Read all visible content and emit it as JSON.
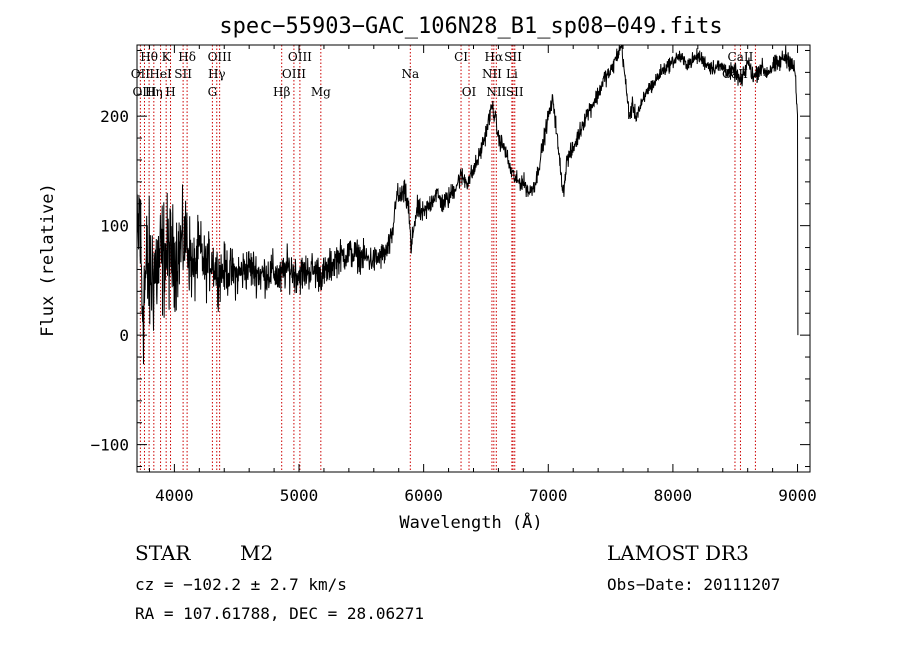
{
  "chart_data": {
    "type": "line",
    "title": "spec−55903−GAC_106N28_B1_sp08−049.fits",
    "xlabel": "Wavelength (Å)",
    "ylabel": "Flux (relative)",
    "xlim": [
      3700,
      9100
    ],
    "ylim": [
      -125,
      265
    ],
    "xticks": [
      4000,
      5000,
      6000,
      7000,
      8000,
      9000
    ],
    "yticks": [
      -100,
      0,
      100,
      200
    ],
    "xtick_labels": [
      "4000",
      "5000",
      "6000",
      "7000",
      "8000",
      "9000"
    ],
    "ytick_labels": [
      "−100",
      "0",
      "100",
      "200"
    ],
    "spectrum_anchors": [
      [
        3700,
        60
      ],
      [
        3720,
        120
      ],
      [
        3740,
        30
      ],
      [
        3760,
        40
      ],
      [
        3780,
        60
      ],
      [
        3800,
        55
      ],
      [
        3850,
        60
      ],
      [
        3900,
        70
      ],
      [
        3950,
        75
      ],
      [
        4000,
        70
      ],
      [
        4050,
        80
      ],
      [
        4100,
        90
      ],
      [
        4150,
        55
      ],
      [
        4200,
        80
      ],
      [
        4250,
        60
      ],
      [
        4300,
        70
      ],
      [
        4350,
        55
      ],
      [
        4400,
        60
      ],
      [
        4500,
        55
      ],
      [
        4600,
        62
      ],
      [
        4700,
        55
      ],
      [
        4800,
        58
      ],
      [
        4850,
        50
      ],
      [
        4900,
        62
      ],
      [
        5000,
        55
      ],
      [
        5100,
        60
      ],
      [
        5200,
        55
      ],
      [
        5300,
        70
      ],
      [
        5400,
        75
      ],
      [
        5500,
        72
      ],
      [
        5600,
        68
      ],
      [
        5700,
        75
      ],
      [
        5750,
        90
      ],
      [
        5780,
        130
      ],
      [
        5800,
        125
      ],
      [
        5850,
        130
      ],
      [
        5880,
        115
      ],
      [
        5900,
        75
      ],
      [
        5920,
        100
      ],
      [
        5950,
        115
      ],
      [
        6000,
        110
      ],
      [
        6050,
        120
      ],
      [
        6100,
        130
      ],
      [
        6150,
        120
      ],
      [
        6200,
        125
      ],
      [
        6250,
        135
      ],
      [
        6300,
        145
      ],
      [
        6350,
        140
      ],
      [
        6400,
        150
      ],
      [
        6450,
        165
      ],
      [
        6500,
        185
      ],
      [
        6550,
        210
      ],
      [
        6580,
        195
      ],
      [
        6600,
        180
      ],
      [
        6650,
        170
      ],
      [
        6700,
        150
      ],
      [
        6750,
        140
      ],
      [
        6800,
        140
      ],
      [
        6850,
        130
      ],
      [
        6900,
        140
      ],
      [
        6950,
        170
      ],
      [
        7000,
        200
      ],
      [
        7040,
        215
      ],
      [
        7080,
        170
      ],
      [
        7120,
        130
      ],
      [
        7150,
        160
      ],
      [
        7200,
        170
      ],
      [
        7250,
        185
      ],
      [
        7300,
        200
      ],
      [
        7350,
        210
      ],
      [
        7400,
        220
      ],
      [
        7450,
        235
      ],
      [
        7500,
        240
      ],
      [
        7550,
        255
      ],
      [
        7590,
        265
      ],
      [
        7620,
        230
      ],
      [
        7650,
        200
      ],
      [
        7680,
        210
      ],
      [
        7700,
        200
      ],
      [
        7750,
        210
      ],
      [
        7800,
        225
      ],
      [
        7850,
        230
      ],
      [
        7900,
        240
      ],
      [
        7950,
        245
      ],
      [
        8000,
        250
      ],
      [
        8050,
        255
      ],
      [
        8100,
        248
      ],
      [
        8150,
        250
      ],
      [
        8200,
        255
      ],
      [
        8250,
        250
      ],
      [
        8300,
        245
      ],
      [
        8350,
        245
      ],
      [
        8400,
        245
      ],
      [
        8450,
        240
      ],
      [
        8500,
        240
      ],
      [
        8550,
        230
      ],
      [
        8600,
        250
      ],
      [
        8650,
        235
      ],
      [
        8700,
        245
      ],
      [
        8750,
        240
      ],
      [
        8800,
        245
      ],
      [
        8850,
        248
      ],
      [
        8900,
        255
      ],
      [
        8950,
        250
      ],
      [
        8980,
        240
      ],
      [
        9000,
        200
      ],
      [
        9003,
        0
      ]
    ],
    "noise_level": [
      [
        3700,
        45
      ],
      [
        3800,
        40
      ],
      [
        3900,
        35
      ],
      [
        4000,
        28
      ],
      [
        4100,
        24
      ],
      [
        4200,
        18
      ],
      [
        4400,
        14
      ],
      [
        4600,
        12
      ],
      [
        5000,
        11
      ],
      [
        5400,
        9
      ],
      [
        5800,
        7
      ],
      [
        6200,
        6
      ],
      [
        6600,
        5
      ],
      [
        7000,
        5
      ],
      [
        7600,
        5
      ],
      [
        8000,
        4
      ],
      [
        8600,
        5
      ],
      [
        9000,
        6
      ]
    ],
    "spectral_lines": [
      {
        "label": "Hθ",
        "wavelength": 3797
      },
      {
        "label": "K",
        "wavelength": 3934
      },
      {
        "label": "Hδ",
        "wavelength": 4102
      },
      {
        "label": "OIII",
        "wavelength": 4363
      },
      {
        "label": "OIII",
        "wavelength": 5007
      },
      {
        "label": "CI",
        "wavelength": 6300
      },
      {
        "label": "Hα",
        "wavelength": 6563
      },
      {
        "label": "SII",
        "wavelength": 6717
      },
      {
        "label": "CaII",
        "wavelength": 8542
      },
      {
        "label": "OII",
        "wavelength": 3727
      },
      {
        "label": "HeI",
        "wavelength": 3889
      },
      {
        "label": "SII",
        "wavelength": 4070
      },
      {
        "label": "Hγ",
        "wavelength": 4340
      },
      {
        "label": "OIII",
        "wavelength": 4959
      },
      {
        "label": "Na",
        "wavelength": 5893
      },
      {
        "label": "NII",
        "wavelength": 6548
      },
      {
        "label": "Li",
        "wavelength": 6708
      },
      {
        "label": "CaII",
        "wavelength": 8498
      },
      {
        "label": "OIII",
        "wavelength": 3760
      },
      {
        "label": "Hη",
        "wavelength": 3835
      },
      {
        "label": "H",
        "wavelength": 3969
      },
      {
        "label": "G",
        "wavelength": 4305
      },
      {
        "label": "Hβ",
        "wavelength": 4861
      },
      {
        "label": "Mg",
        "wavelength": 5175
      },
      {
        "label": "OI",
        "wavelength": 6364
      },
      {
        "label": "NII",
        "wavelength": 6583
      },
      {
        "label": "SII",
        "wavelength": 6731
      },
      {
        "label": "CaII",
        "wavelength": 8662
      }
    ]
  },
  "info": {
    "object_class": "STAR",
    "subclass": "M2",
    "survey": "LAMOST DR3",
    "cz": "cz = −102.2 ± 2.7 km/s",
    "obs_date": "Obs−Date: 20111207",
    "coords": "RA = 107.61788, DEC =  28.06271"
  }
}
